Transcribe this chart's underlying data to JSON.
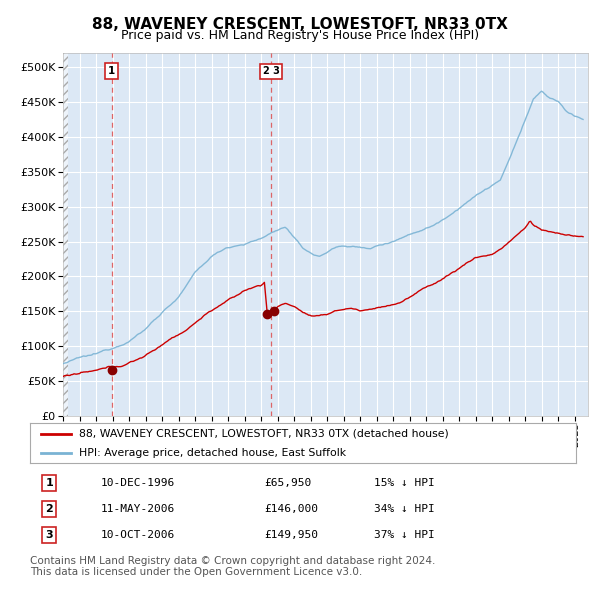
{
  "title": "88, WAVENEY CRESCENT, LOWESTOFT, NR33 0TX",
  "subtitle": "Price paid vs. HM Land Registry's House Price Index (HPI)",
  "title_fontsize": 11,
  "subtitle_fontsize": 9,
  "hpi_color": "#7ab3d4",
  "price_color": "#cc0000",
  "dot_color": "#880000",
  "ylim": [
    0,
    520000
  ],
  "yticks": [
    0,
    50000,
    100000,
    150000,
    200000,
    250000,
    300000,
    350000,
    400000,
    450000,
    500000
  ],
  "legend_hpi": "HPI: Average price, detached house, East Suffolk",
  "legend_price": "88, WAVENEY CRESCENT, LOWESTOFT, NR33 0TX (detached house)",
  "transactions": [
    {
      "num": 1,
      "date": "10-DEC-1996",
      "price_label": "£65,950",
      "pct": "15% ↓ HPI",
      "year": 1996.94,
      "price": 65950
    },
    {
      "num": 2,
      "date": "11-MAY-2006",
      "price_label": "£146,000",
      "pct": "34% ↓ HPI",
      "year": 2006.37,
      "price": 146000
    },
    {
      "num": 3,
      "date": "10-OCT-2006",
      "price_label": "£149,950",
      "pct": "37% ↓ HPI",
      "year": 2006.79,
      "price": 149950
    }
  ],
  "footer": "Contains HM Land Registry data © Crown copyright and database right 2024.\nThis data is licensed under the Open Government Licence v3.0.",
  "footer_fontsize": 7.5,
  "plot_bg": "#dce8f5",
  "outer_bg": "#ffffff",
  "grid_color": "#ffffff",
  "vline_color": "#dd4444",
  "box_edge_color": "#cc2222"
}
